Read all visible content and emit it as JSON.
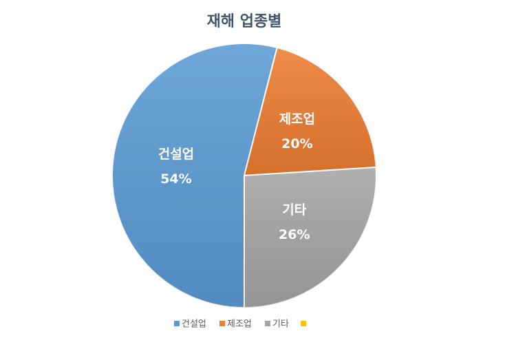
{
  "chart_data": {
    "type": "pie",
    "title": "재해 업종별",
    "categories": [
      "건설업",
      "제조업",
      "기타",
      null
    ],
    "values": [
      54,
      20,
      26,
      0
    ],
    "value_labels": [
      "54%",
      "20%",
      "26%",
      null
    ],
    "colors": [
      "#5b9bd5",
      "#ed7d31",
      "#a5a5a5",
      "#ffc000"
    ]
  }
}
